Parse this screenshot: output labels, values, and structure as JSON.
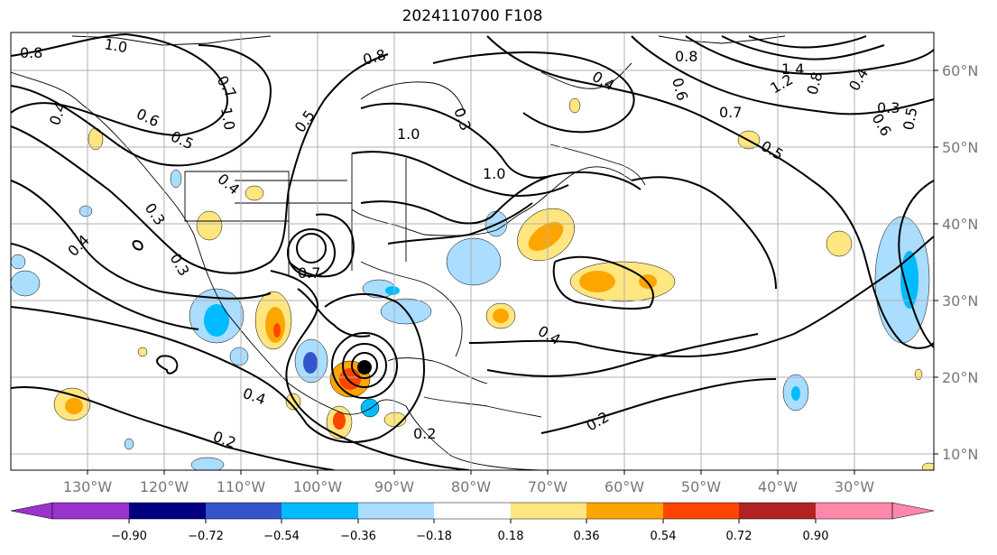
{
  "map": {
    "title": "2024110700 F108",
    "lon_labels": [
      "130°W",
      "120°W",
      "110°W",
      "100°W",
      "90°W",
      "80°W",
      "70°W",
      "60°W",
      "50°W",
      "40°W",
      "30°W"
    ],
    "lat_labels": [
      "60°N",
      "50°N",
      "40°N",
      "30°N",
      "20°N",
      "10°N"
    ],
    "contour_labels": [
      "0.8",
      "1.0",
      "0.8",
      "0.7",
      "0.8",
      "0.4",
      "1.4",
      "1.2",
      "0.6",
      "0.4",
      "0.6",
      "0.7",
      "0.8",
      "0.5",
      "0.3",
      "0.5",
      "0.6",
      "0.5",
      "1.0",
      "1.0",
      "0.3",
      "0.5",
      "0.4",
      "0.4",
      "1.0",
      "0.3",
      "0.3",
      "0.4",
      "0.7",
      "0.4",
      "0.2",
      "0.2",
      "0.2",
      "0.4"
    ],
    "colors": {
      "frame": "#000000",
      "grid": "#b0b0b0",
      "contour": "#000000"
    }
  },
  "colorbar": {
    "ticks": [
      "−0.90",
      "−0.72",
      "−0.54",
      "−0.36",
      "−0.18",
      "0.18",
      "0.36",
      "0.54",
      "0.72",
      "0.90"
    ],
    "colors": [
      "#9933cc",
      "#000080",
      "#3355cc",
      "#00bbff",
      "#aaddff",
      "#ffffff",
      "#ffe680",
      "#ffa500",
      "#ff4500",
      "#b22222",
      "#ff88aa"
    ]
  }
}
